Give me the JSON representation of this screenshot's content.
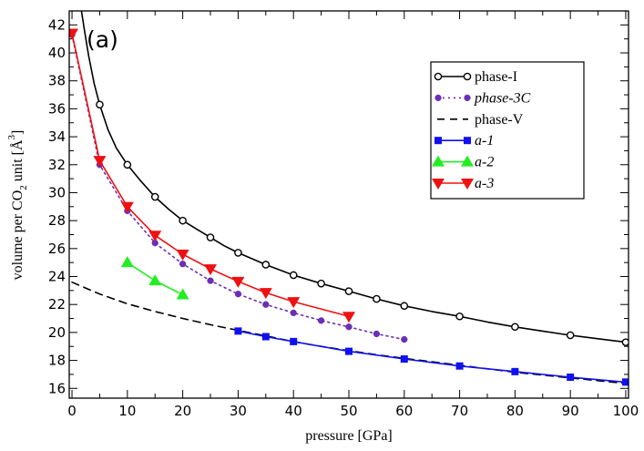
{
  "chart_data": {
    "type": "line",
    "panel_label": "(a)",
    "xlabel": "pressure [GPa]",
    "ylabel": "volume per CO2 unit [Å^3]",
    "ylabel_parts": {
      "pre": "volume per CO",
      "sub": "2",
      "mid": " unit [",
      "unit": "Å",
      "sup": "3",
      "post": "]"
    },
    "xlim": [
      -0.5,
      100.5
    ],
    "ylim": [
      15.3,
      43
    ],
    "x_ticks": [
      0,
      10,
      20,
      30,
      40,
      50,
      60,
      70,
      80,
      90,
      100
    ],
    "x_tick_labels": [
      "0",
      "10",
      "20",
      "30",
      "40",
      "50",
      "60",
      "70",
      "80",
      "90",
      "100"
    ],
    "y_ticks": [
      16,
      18,
      20,
      22,
      24,
      26,
      28,
      30,
      32,
      34,
      36,
      38,
      40,
      42
    ],
    "y_tick_labels": [
      "16",
      "18",
      "20",
      "22",
      "24",
      "26",
      "28",
      "30",
      "32",
      "34",
      "36",
      "38",
      "40",
      "42"
    ],
    "legend_position": "top-right",
    "series": [
      {
        "name": "phase-I",
        "legend_label": "phase-I",
        "legend_italic": false,
        "color": "#000000",
        "line": "solid",
        "marker": "open-circle",
        "x": [
          5,
          10,
          15,
          20,
          25,
          30,
          35,
          40,
          45,
          50,
          55,
          60,
          70,
          80,
          90,
          100
        ],
        "y": [
          36.3,
          32.0,
          29.7,
          28.0,
          26.8,
          25.7,
          24.85,
          24.1,
          23.5,
          22.95,
          22.4,
          21.9,
          21.15,
          20.4,
          19.8,
          19.3
        ],
        "curve": {
          "x": [
            1.7,
            2.3,
            3,
            4,
            5,
            6.5,
            8,
            10,
            12.5,
            15,
            17.5,
            20,
            22.5,
            25,
            27.5,
            30,
            35,
            40,
            45,
            50,
            55,
            60,
            65,
            70,
            75,
            80,
            85,
            90,
            95,
            100
          ],
          "y": [
            43,
            41.5,
            39.8,
            37.8,
            36.3,
            34.5,
            33.2,
            32.0,
            30.8,
            29.7,
            28.8,
            28.0,
            27.4,
            26.8,
            26.2,
            25.7,
            24.85,
            24.1,
            23.5,
            22.95,
            22.4,
            21.9,
            21.5,
            21.15,
            20.75,
            20.4,
            20.1,
            19.8,
            19.55,
            19.3
          ]
        }
      },
      {
        "name": "phase-3C",
        "legend_label": "phase-3C",
        "legend_italic": true,
        "color": "#6a2fb5",
        "line": "dotted",
        "marker": "filled-circle",
        "x": [
          0,
          5,
          10,
          15,
          20,
          25,
          30,
          35,
          40,
          45,
          50,
          55,
          60
        ],
        "y": [
          41.3,
          32.0,
          28.7,
          26.4,
          24.9,
          23.7,
          22.75,
          22.0,
          21.4,
          20.85,
          20.4,
          19.9,
          19.5
        ]
      },
      {
        "name": "phase-V",
        "legend_label": "phase-V",
        "legend_italic": false,
        "color": "#000000",
        "line": "dashed",
        "marker": "none",
        "x": [
          0,
          5,
          10,
          15,
          20,
          25,
          30,
          35,
          40,
          45,
          50,
          55,
          60,
          65,
          70,
          75,
          80,
          85,
          90,
          95,
          100
        ],
        "y": [
          23.6,
          22.75,
          22.05,
          21.5,
          21.0,
          20.55,
          20.15,
          19.75,
          19.35,
          19.0,
          18.7,
          18.4,
          18.15,
          17.9,
          17.65,
          17.4,
          17.15,
          16.95,
          16.75,
          16.55,
          16.35
        ]
      },
      {
        "name": "a-1",
        "legend_label": "a-1",
        "legend_italic": true,
        "color": "#1010f0",
        "line": "solid",
        "marker": "filled-square",
        "x": [
          30,
          35,
          40,
          50,
          60,
          70,
          80,
          90,
          100
        ],
        "y": [
          20.1,
          19.7,
          19.35,
          18.65,
          18.1,
          17.6,
          17.2,
          16.8,
          16.45
        ]
      },
      {
        "name": "a-2",
        "legend_label": "a-2",
        "legend_italic": true,
        "color": "#22ee22",
        "line": "solid",
        "marker": "triangle-up",
        "x": [
          10,
          15,
          20
        ],
        "y": [
          25.0,
          23.7,
          22.7
        ]
      },
      {
        "name": "a-3",
        "legend_label": "a-3",
        "legend_italic": true,
        "color": "#ee1111",
        "line": "solid",
        "marker": "triangle-down",
        "x": [
          0,
          5,
          10,
          15,
          20,
          25,
          30,
          35,
          40,
          50
        ],
        "y": [
          41.4,
          32.3,
          29.0,
          26.95,
          25.6,
          24.55,
          23.65,
          22.85,
          22.2,
          21.15
        ]
      }
    ]
  }
}
